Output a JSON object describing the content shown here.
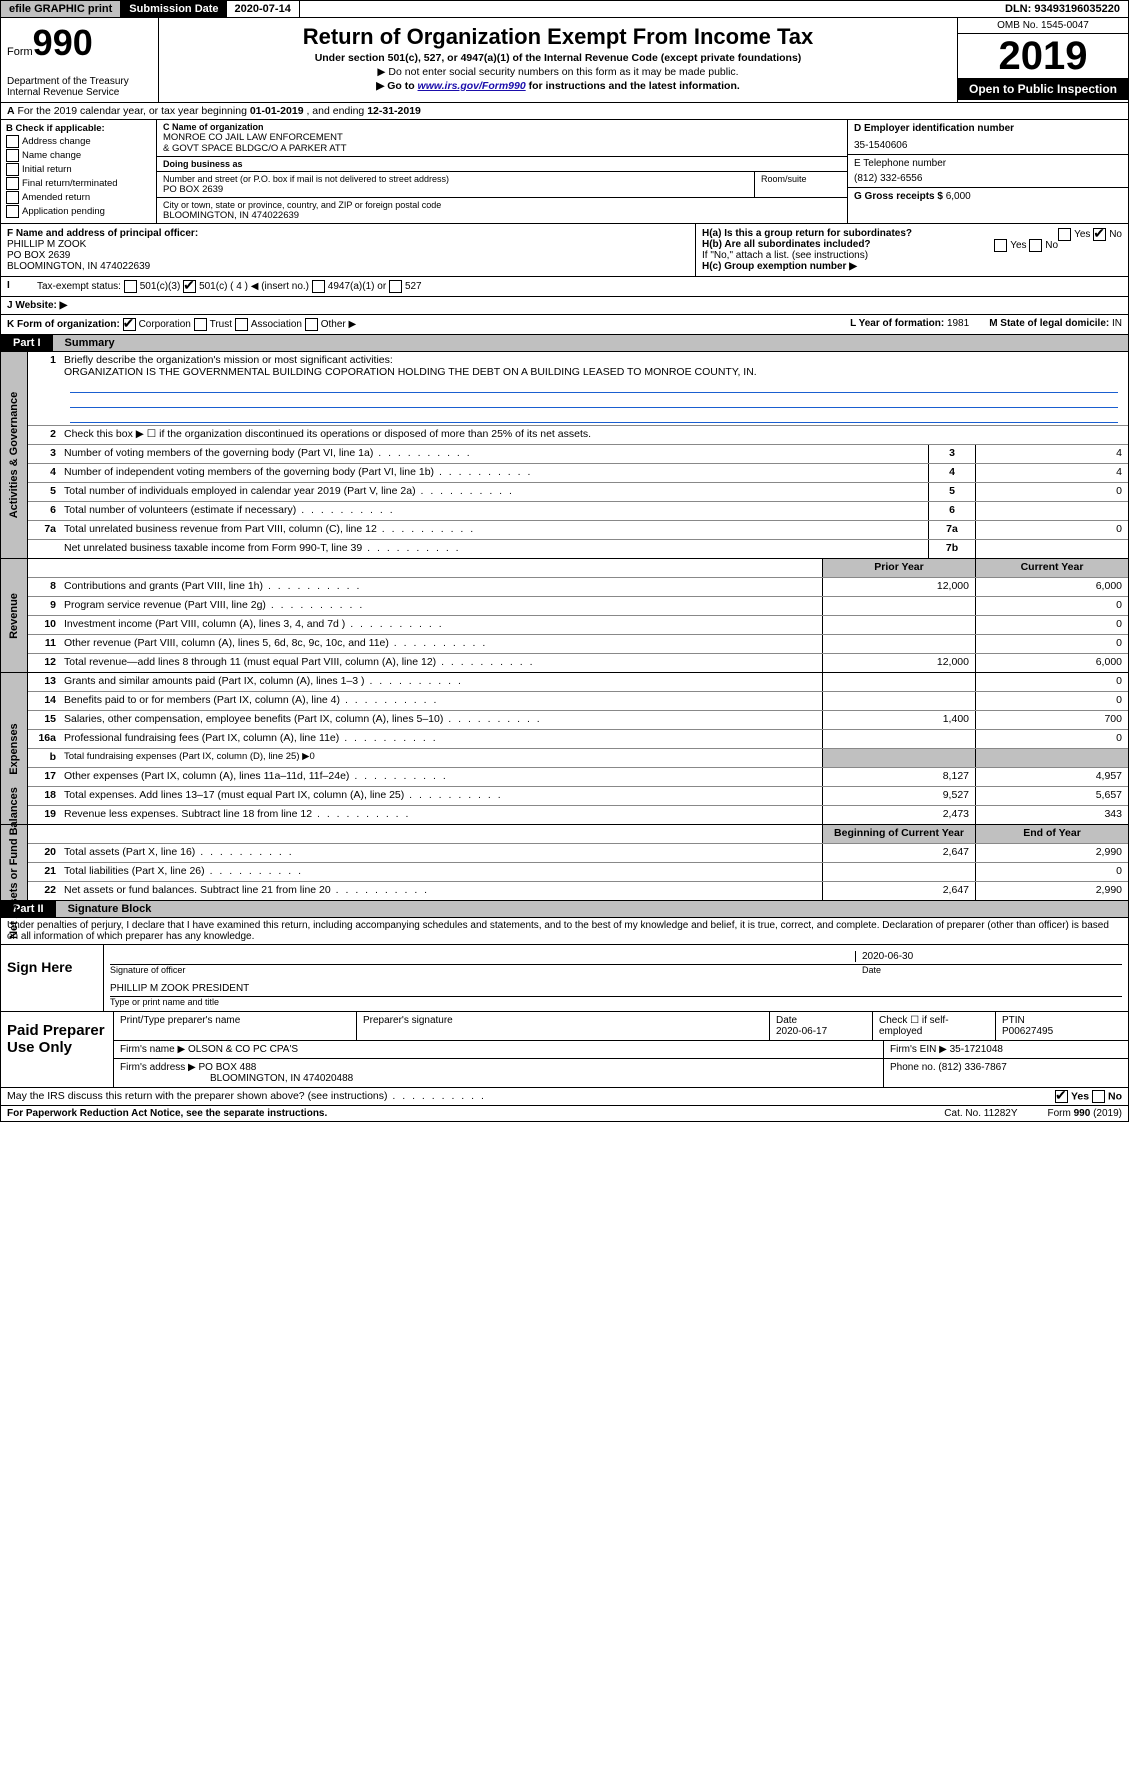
{
  "colors": {
    "header_grey": "#c0c0c0",
    "black": "#000000",
    "white": "#ffffff",
    "link_blue": "#1a0dab",
    "rule_blue": "#1a5fd0"
  },
  "topbar": {
    "efile": "efile GRAPHIC print",
    "submission_label": "Submission Date",
    "submission_date": "2020-07-14",
    "dln_label": "DLN:",
    "dln": "93493196035220"
  },
  "header": {
    "form_word": "Form",
    "form_number": "990",
    "dept": "Department of the Treasury\nInternal Revenue Service",
    "title": "Return of Organization Exempt From Income Tax",
    "under": "Under section 501(c), 527, or 4947(a)(1) of the Internal Revenue Code (except private foundations)",
    "arrow1": "Do not enter social security numbers on this form as it may be made public.",
    "arrow2_a": "Go to ",
    "arrow2_link": "www.irs.gov/Form990",
    "arrow2_b": " for instructions and the latest information.",
    "omb": "OMB No. 1545-0047",
    "year": "2019",
    "open": "Open to Public Inspection"
  },
  "a_line": {
    "text_a": "For the 2019 calendar year, or tax year beginning ",
    "begin": "01-01-2019",
    "mid": " , and ending ",
    "end": "12-31-2019"
  },
  "b": {
    "heading": "B Check if applicable:",
    "items": [
      "Address change",
      "Name change",
      "Initial return",
      "Final return/terminated",
      "Amended return",
      "Application pending"
    ]
  },
  "c": {
    "name_label": "C Name of organization",
    "name_line1": "MONROE CO JAIL LAW ENFORCEMENT",
    "name_line2": "& GOVT SPACE BLDGC/O A PARKER ATT",
    "dba_label": "Doing business as",
    "dba": "",
    "addr_label": "Number and street (or P.O. box if mail is not delivered to street address)",
    "addr": "PO BOX 2639",
    "room_label": "Room/suite",
    "city_label": "City or town, state or province, country, and ZIP or foreign postal code",
    "city": "BLOOMINGTON, IN  474022639"
  },
  "d": {
    "ein_label": "D Employer identification number",
    "ein": "35-1540606",
    "phone_label": "E Telephone number",
    "phone": "(812) 332-6556",
    "gross_label": "G Gross receipts $",
    "gross": "6,000"
  },
  "f": {
    "label": "F  Name and address of principal officer:",
    "name": "PHILLIP M ZOOK",
    "addr1": "PO BOX 2639",
    "addr2": "BLOOMINGTON, IN  474022639"
  },
  "h": {
    "a": "H(a)  Is this a group return for subordinates?",
    "a_yes": "Yes",
    "a_no": "No",
    "b": "H(b)  Are all subordinates included?",
    "b_yes": "Yes",
    "b_no": "No",
    "b_note": "If \"No,\" attach a list. (see instructions)",
    "c": "H(c)  Group exemption number ▶"
  },
  "i": {
    "label": "Tax-exempt status:",
    "opts": [
      "501(c)(3)",
      "501(c) ( 4 ) ◀ (insert no.)",
      "4947(a)(1) or",
      "527"
    ],
    "checked_index": 1
  },
  "j": {
    "label": "J   Website: ▶",
    "value": ""
  },
  "k": {
    "label": "K Form of organization:",
    "opts": [
      "Corporation",
      "Trust",
      "Association",
      "Other ▶"
    ],
    "checked_index": 0,
    "l_label": "L Year of formation:",
    "l_val": "1981",
    "m_label": "M State of legal domicile:",
    "m_val": "IN"
  },
  "part1": {
    "label": "Part I",
    "title": "Summary"
  },
  "governance": {
    "side": "Activities & Governance",
    "q1_label": "Briefly describe the organization's mission or most significant activities:",
    "q1_text": "ORGANIZATION IS THE GOVERNMENTAL BUILDING COPORATION HOLDING THE DEBT ON A BUILDING LEASED TO MONROE COUNTY, IN.",
    "q2": "Check this box ▶ ☐  if the organization discontinued its operations or disposed of more than 25% of its net assets.",
    "rows": [
      {
        "n": "3",
        "d": "Number of voting members of the governing body (Part VI, line 1a)",
        "c": "3",
        "v": "4"
      },
      {
        "n": "4",
        "d": "Number of independent voting members of the governing body (Part VI, line 1b)",
        "c": "4",
        "v": "4"
      },
      {
        "n": "5",
        "d": "Total number of individuals employed in calendar year 2019 (Part V, line 2a)",
        "c": "5",
        "v": "0"
      },
      {
        "n": "6",
        "d": "Total number of volunteers (estimate if necessary)",
        "c": "6",
        "v": ""
      },
      {
        "n": "7a",
        "d": "Total unrelated business revenue from Part VIII, column (C), line 12",
        "c": "7a",
        "v": "0"
      },
      {
        "n": "",
        "d": "Net unrelated business taxable income from Form 990-T, line 39",
        "c": "7b",
        "v": ""
      }
    ]
  },
  "revenue": {
    "side": "Revenue",
    "head_prior": "Prior Year",
    "head_current": "Current Year",
    "rows": [
      {
        "n": "8",
        "d": "Contributions and grants (Part VIII, line 1h)",
        "p": "12,000",
        "c": "6,000"
      },
      {
        "n": "9",
        "d": "Program service revenue (Part VIII, line 2g)",
        "p": "",
        "c": "0"
      },
      {
        "n": "10",
        "d": "Investment income (Part VIII, column (A), lines 3, 4, and 7d )",
        "p": "",
        "c": "0"
      },
      {
        "n": "11",
        "d": "Other revenue (Part VIII, column (A), lines 5, 6d, 8c, 9c, 10c, and 11e)",
        "p": "",
        "c": "0"
      },
      {
        "n": "12",
        "d": "Total revenue—add lines 8 through 11 (must equal Part VIII, column (A), line 12)",
        "p": "12,000",
        "c": "6,000"
      }
    ]
  },
  "expenses": {
    "side": "Expenses",
    "rows": [
      {
        "n": "13",
        "d": "Grants and similar amounts paid (Part IX, column (A), lines 1–3 )",
        "p": "",
        "c": "0"
      },
      {
        "n": "14",
        "d": "Benefits paid to or for members (Part IX, column (A), line 4)",
        "p": "",
        "c": "0"
      },
      {
        "n": "15",
        "d": "Salaries, other compensation, employee benefits (Part IX, column (A), lines 5–10)",
        "p": "1,400",
        "c": "700"
      },
      {
        "n": "16a",
        "d": "Professional fundraising fees (Part IX, column (A), line 11e)",
        "p": "",
        "c": "0"
      },
      {
        "n": "b",
        "d": "Total fundraising expenses (Part IX, column (D), line 25) ▶0",
        "p": null,
        "c": null
      },
      {
        "n": "17",
        "d": "Other expenses (Part IX, column (A), lines 11a–11d, 11f–24e)",
        "p": "8,127",
        "c": "4,957"
      },
      {
        "n": "18",
        "d": "Total expenses. Add lines 13–17 (must equal Part IX, column (A), line 25)",
        "p": "9,527",
        "c": "5,657"
      },
      {
        "n": "19",
        "d": "Revenue less expenses. Subtract line 18 from line 12",
        "p": "2,473",
        "c": "343"
      }
    ]
  },
  "netassets": {
    "side": "Net Assets or Fund Balances",
    "head_begin": "Beginning of Current Year",
    "head_end": "End of Year",
    "rows": [
      {
        "n": "20",
        "d": "Total assets (Part X, line 16)",
        "p": "2,647",
        "c": "2,990"
      },
      {
        "n": "21",
        "d": "Total liabilities (Part X, line 26)",
        "p": "",
        "c": "0"
      },
      {
        "n": "22",
        "d": "Net assets or fund balances. Subtract line 21 from line 20",
        "p": "2,647",
        "c": "2,990"
      }
    ]
  },
  "part2": {
    "label": "Part II",
    "title": "Signature Block"
  },
  "perjury": "Under penalties of perjury, I declare that I have examined this return, including accompanying schedules and statements, and to the best of my knowledge and belief, it is true, correct, and complete. Declaration of preparer (other than officer) is based on all information of which preparer has any knowledge.",
  "sign": {
    "label": "Sign Here",
    "sig_of_officer": "Signature of officer",
    "date": "2020-06-30",
    "date_label": "Date",
    "name": "PHILLIP M ZOOK  PRESIDENT",
    "name_label": "Type or print name and title"
  },
  "paid": {
    "label": "Paid Preparer Use Only",
    "h1": "Print/Type preparer's name",
    "h2": "Preparer's signature",
    "h3": "Date",
    "date": "2020-06-17",
    "h4": "Check ☐ if self-employed",
    "h5": "PTIN",
    "ptin": "P00627495",
    "firm_name_label": "Firm's name      ▶",
    "firm_name": "OLSON & CO PC CPA'S",
    "firm_ein_label": "Firm's EIN ▶",
    "firm_ein": "35-1721048",
    "firm_addr_label": "Firm's address ▶",
    "firm_addr1": "PO BOX 488",
    "firm_addr2": "BLOOMINGTON, IN  474020488",
    "phone_label": "Phone no.",
    "phone": "(812) 336-7867"
  },
  "discuss": {
    "q": "May the IRS discuss this return with the preparer shown above? (see instructions)",
    "yes": "Yes",
    "no": "No"
  },
  "footer": {
    "pra": "For Paperwork Reduction Act Notice, see the separate instructions.",
    "cat": "Cat. No. 11282Y",
    "form": "Form 990 (2019)"
  }
}
